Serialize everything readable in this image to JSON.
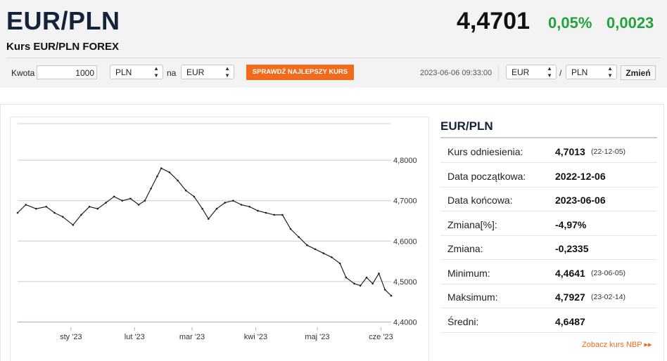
{
  "header": {
    "pair": "EUR/PLN",
    "subtitle": "Kurs EUR/PLN FOREX",
    "price": "4,4701",
    "change_pct": "0,05%",
    "change_abs": "0,0023"
  },
  "converter": {
    "amount_label": "Kwota",
    "amount_value": "1000",
    "from_currency": "PLN",
    "na_label": "na",
    "to_currency": "EUR",
    "best_rate_button": "SPRAWDŹ NAJLEPSZY KURS",
    "datetime": "2023-06-06 09:33:00",
    "pair_from": "EUR",
    "slash": "/",
    "pair_to": "PLN",
    "change_button": "Zmień"
  },
  "panel": {
    "title": "EUR/PLN",
    "rows": [
      {
        "label": "Kurs odniesienia:",
        "value": "4,7013",
        "date": "(22-12-05)"
      },
      {
        "label": "Data początkowa:",
        "value": "2022-12-06",
        "date": ""
      },
      {
        "label": "Data końcowa:",
        "value": "2023-06-06",
        "date": ""
      },
      {
        "label": "Zmiana[%]:",
        "value": "-4,97%",
        "date": ""
      },
      {
        "label": "Zmiana:",
        "value": "-0,2335",
        "date": ""
      },
      {
        "label": "Minimum:",
        "value": "4,4641",
        "date": "(23-06-05)"
      },
      {
        "label": "Maksimum:",
        "value": "4,7927",
        "date": "(23-02-14)"
      },
      {
        "label": "Średni:",
        "value": "4,6487",
        "date": ""
      }
    ],
    "link_nbp": "Zobacz kurs NBP ▸▸"
  },
  "colors": {
    "accent": "#f26a1b",
    "up": "#23a33b",
    "title": "#14233a"
  },
  "chart_data": {
    "type": "line",
    "categories": [
      "sty '23",
      "lut '23",
      "mar '23",
      "kwi '23",
      "maj '23",
      "cze '23"
    ],
    "y_ticks": [
      "4,4000",
      "4,5000",
      "4,6000",
      "4,7000",
      "4,8000"
    ],
    "ylim": [
      4.4,
      4.8
    ],
    "xlim": [
      "2022-12-06",
      "2023-06-06"
    ],
    "series": [
      {
        "values": [
          [
            "2022-12-06",
            4.67
          ],
          [
            "2022-12-10",
            4.69
          ],
          [
            "2022-12-15",
            4.68
          ],
          [
            "2022-12-20",
            4.685
          ],
          [
            "2022-12-24",
            4.67
          ],
          [
            "2022-12-28",
            4.66
          ],
          [
            "2023-01-02",
            4.64
          ],
          [
            "2023-01-06",
            4.665
          ],
          [
            "2023-01-10",
            4.685
          ],
          [
            "2023-01-14",
            4.68
          ],
          [
            "2023-01-18",
            4.695
          ],
          [
            "2023-01-22",
            4.71
          ],
          [
            "2023-01-26",
            4.7
          ],
          [
            "2023-01-30",
            4.705
          ],
          [
            "2023-02-03",
            4.69
          ],
          [
            "2023-02-06",
            4.7
          ],
          [
            "2023-02-09",
            4.73
          ],
          [
            "2023-02-12",
            4.76
          ],
          [
            "2023-02-14",
            4.78
          ],
          [
            "2023-02-18",
            4.77
          ],
          [
            "2023-02-22",
            4.75
          ],
          [
            "2023-02-26",
            4.725
          ],
          [
            "2023-03-02",
            4.71
          ],
          [
            "2023-03-06",
            4.68
          ],
          [
            "2023-03-09",
            4.655
          ],
          [
            "2023-03-13",
            4.68
          ],
          [
            "2023-03-17",
            4.695
          ],
          [
            "2023-03-21",
            4.7
          ],
          [
            "2023-03-25",
            4.69
          ],
          [
            "2023-03-29",
            4.685
          ],
          [
            "2023-04-02",
            4.675
          ],
          [
            "2023-04-06",
            4.67
          ],
          [
            "2023-04-10",
            4.665
          ],
          [
            "2023-04-14",
            4.665
          ],
          [
            "2023-04-18",
            4.63
          ],
          [
            "2023-04-22",
            4.61
          ],
          [
            "2023-04-26",
            4.59
          ],
          [
            "2023-04-30",
            4.58
          ],
          [
            "2023-05-04",
            4.57
          ],
          [
            "2023-05-08",
            4.56
          ],
          [
            "2023-05-12",
            4.545
          ],
          [
            "2023-05-15",
            4.51
          ],
          [
            "2023-05-19",
            4.495
          ],
          [
            "2023-05-22",
            4.49
          ],
          [
            "2023-05-25",
            4.51
          ],
          [
            "2023-05-28",
            4.495
          ],
          [
            "2023-05-31",
            4.52
          ],
          [
            "2023-06-03",
            4.48
          ],
          [
            "2023-06-06",
            4.465
          ]
        ]
      }
    ]
  }
}
